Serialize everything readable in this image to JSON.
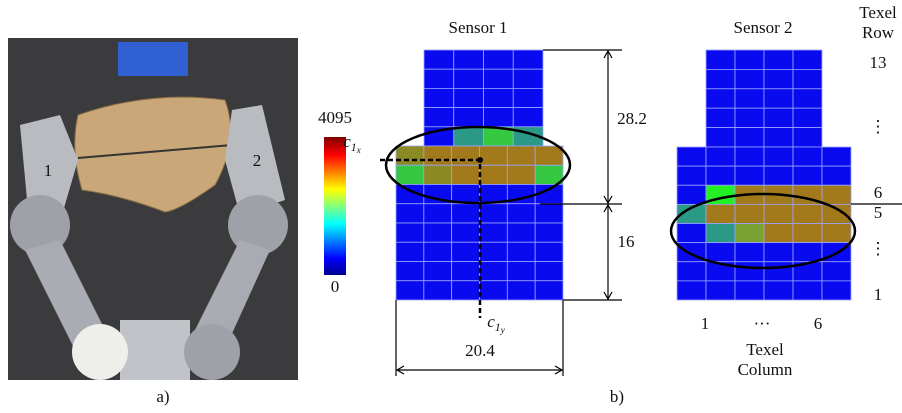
{
  "panel_a": {
    "finger_labels": [
      "1",
      "2"
    ],
    "caption": "a)"
  },
  "panel_b": {
    "caption": "b)",
    "sensor1": {
      "title": "Sensor 1",
      "height_top": "28.2",
      "height_bottom": "16",
      "width": "20.4",
      "cx": {
        "base": "c",
        "sub": "1",
        "subsub": "x"
      },
      "cy": {
        "base": "c",
        "sub": "1",
        "subsub": "y"
      }
    },
    "sensor2": {
      "title": "Sensor 2"
    },
    "colorbar": {
      "max": "4095",
      "min": "0"
    },
    "row_axis": {
      "title_1": "Texel",
      "title_2": "Row",
      "labels": [
        "13",
        "⋮",
        "6",
        "5",
        "⋮",
        "1"
      ]
    },
    "column_axis": {
      "labels": [
        "1",
        "···",
        "6"
      ],
      "title_1": "Texel",
      "title_2": "Column"
    }
  }
}
